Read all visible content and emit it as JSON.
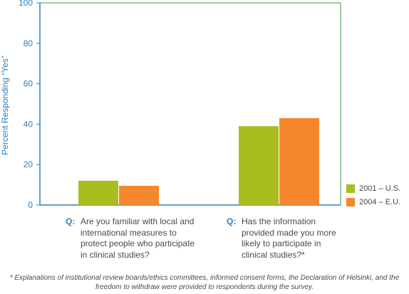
{
  "chart_data": {
    "type": "bar",
    "title": "",
    "ylabel": "Percent Responding “Yes”",
    "ylim": [
      0,
      100
    ],
    "yticks": [
      "0",
      "20",
      "40",
      "60",
      "80",
      "100"
    ],
    "categories": [
      {
        "q_label": "Q:",
        "text": "Are you familiar with local and international measures to protect people who participate in clinical studies?"
      },
      {
        "q_label": "Q:",
        "text": "Has the information provided made you more likely to participate in clinical studies?*"
      }
    ],
    "series": [
      {
        "name": "2001 – U.S.",
        "color": "#a9bd1f",
        "values": [
          12,
          39
        ]
      },
      {
        "name": "2004 – E.U.",
        "color": "#f5872e",
        "values": [
          9.5,
          43
        ]
      }
    ],
    "legend_position": "bottom-right",
    "grid": false,
    "footnote": "* Explanations of institutional review boards/ethics committees, informed consent forms, the Declaration of Helsinki, and the freedom to withdraw were provided to respondents during the survey."
  },
  "colors": {
    "axis": "#2a80c2",
    "frame": "#3d9a3a"
  }
}
